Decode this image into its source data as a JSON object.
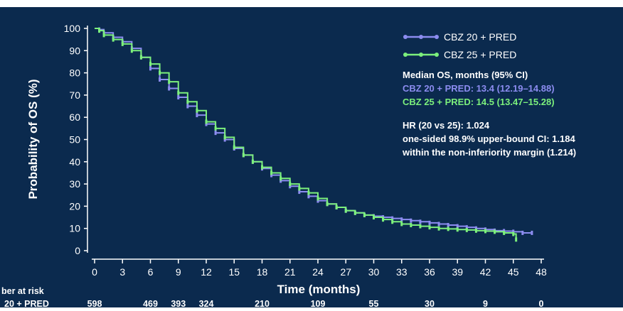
{
  "chart_data": {
    "type": "line",
    "title": "",
    "xlabel": "Time (months)",
    "ylabel": "Probability of OS (%)",
    "xlim": [
      0,
      48
    ],
    "ylim": [
      0,
      100
    ],
    "x_ticks": [
      0,
      3,
      6,
      9,
      12,
      15,
      18,
      21,
      24,
      27,
      30,
      33,
      36,
      39,
      42,
      45,
      48
    ],
    "y_ticks": [
      0,
      10,
      20,
      30,
      40,
      50,
      60,
      70,
      80,
      90,
      100
    ],
    "grid": false,
    "legend_position": "top-right",
    "series": [
      {
        "name": "CBZ 20 + PRED",
        "color": "#8c8cf0",
        "x": [
          0,
          0.5,
          1,
          2,
          3,
          4,
          5,
          6,
          7,
          8,
          9,
          10,
          11,
          12,
          13,
          14,
          15,
          16,
          17,
          18,
          19,
          20,
          21,
          22,
          23,
          24,
          25,
          26,
          27,
          28,
          29,
          30,
          31,
          32,
          33,
          34,
          35,
          36,
          37,
          38,
          39,
          40,
          41,
          42,
          43,
          44,
          45,
          46,
          47
        ],
        "y": [
          100,
          99.5,
          98,
          96,
          94,
          91,
          87,
          82,
          77,
          73,
          69,
          65,
          61,
          57,
          53,
          50,
          46,
          43,
          40,
          37,
          34,
          31.5,
          29,
          26.5,
          24.5,
          22.5,
          21,
          19.5,
          18,
          17,
          16,
          15.5,
          15,
          14.5,
          14,
          13.5,
          13,
          12.5,
          12,
          11.5,
          11,
          10.5,
          10,
          9.5,
          9,
          8.8,
          8.5,
          8,
          8
        ]
      },
      {
        "name": "CBZ 25 + PRED",
        "color": "#7cf07c",
        "x": [
          0,
          0.5,
          1,
          2,
          3,
          4,
          5,
          6,
          7,
          8,
          9,
          10,
          11,
          12,
          13,
          14,
          15,
          16,
          17,
          18,
          19,
          20,
          21,
          22,
          23,
          24,
          25,
          26,
          27,
          28,
          29,
          30,
          31,
          32,
          33,
          34,
          35,
          36,
          37,
          38,
          39,
          40,
          41,
          42,
          43,
          44,
          45,
          45.3
        ],
        "y": [
          100,
          99,
          97,
          95,
          93,
          90,
          87,
          84,
          80,
          76,
          71,
          67,
          63,
          58,
          55,
          51,
          46.5,
          43,
          40,
          37.5,
          35,
          32.5,
          30,
          28,
          26,
          23.5,
          21,
          19.5,
          18,
          17,
          16,
          15,
          14,
          13,
          12,
          11.5,
          11,
          10.5,
          10,
          9.8,
          9.5,
          9.3,
          9,
          8.8,
          8.5,
          8,
          7.5,
          5
        ]
      }
    ],
    "annotations": {
      "median_header": "Median OS, months (95% CI)",
      "median_20": "CBZ 20 + PRED: 13.4 (12.19–14.88)",
      "median_25": "CBZ 25 + PRED: 14.5 (13.47–15.28)",
      "hr_line1": "HR (20 vs 25): 1.024",
      "hr_line2": "one-sided 98.9% upper-bound CI: 1.184",
      "hr_line3": "within the non-inferiority margin (1.214)"
    },
    "risk_table": {
      "header": "ber at risk",
      "row_label": "20 + PRED",
      "times": [
        0,
        6,
        9,
        12,
        18,
        24,
        30,
        36,
        42,
        48
      ],
      "values": [
        "598",
        "469",
        "393",
        "324",
        "210",
        "109",
        "55",
        "30",
        "9",
        "0"
      ]
    }
  }
}
